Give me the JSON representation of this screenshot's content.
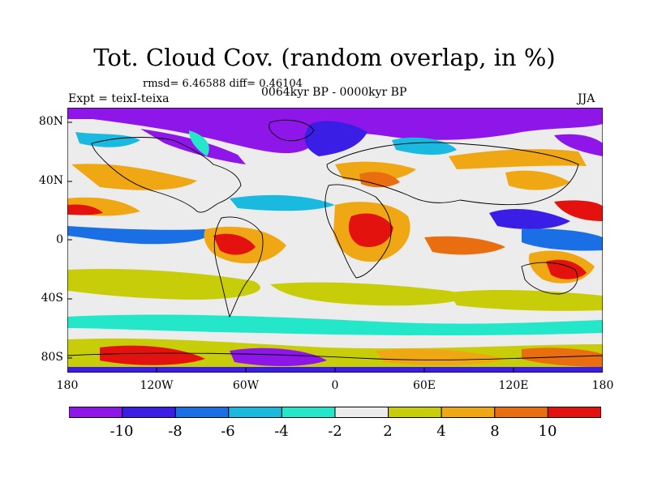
{
  "title": "Tot. Cloud Cov. (random overlap, in %)",
  "stats": "rmsd= 6.46588 diff= 0.46104",
  "period": "0064kyr BP - 0000kyr BP",
  "experiment": "Expt = teixI-teixa",
  "season": "JJA",
  "map": {
    "projection": "cylindrical-equidistant",
    "lon_range": [
      -180,
      180
    ],
    "lat_range": [
      -90,
      90
    ],
    "lat_ticks": [
      "80N",
      "40N",
      "0",
      "40S",
      "80S"
    ],
    "lon_ticks": [
      "180",
      "120W",
      "60W",
      "0",
      "60E",
      "120E",
      "180"
    ]
  },
  "colorbar": {
    "tick_labels": [
      "-10",
      "-8",
      "-6",
      "-4",
      "-2",
      "2",
      "4",
      "8",
      "10"
    ],
    "colors": [
      "#8f16e8",
      "#3b1ee6",
      "#1b6fe4",
      "#19b9e0",
      "#24e6c9",
      "#ececec",
      "#c8cd09",
      "#f0a714",
      "#e86e10",
      "#e4120e"
    ]
  }
}
